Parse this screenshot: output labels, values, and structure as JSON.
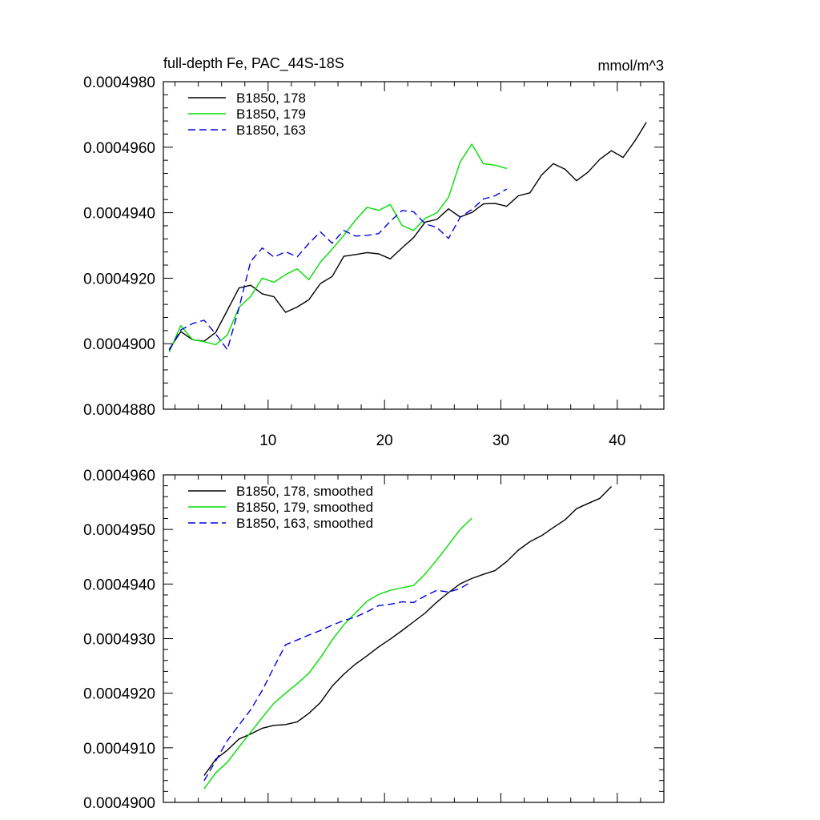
{
  "chart_data": [
    {
      "type": "line",
      "title": "full-depth Fe, PAC_44S-18S",
      "units": "mmol/m^3",
      "xlim": [
        1,
        44
      ],
      "ylim": [
        0.000488,
        0.000498
      ],
      "xticks": [
        10,
        20,
        30,
        40
      ],
      "xtick_labels": [
        "10",
        "20",
        "30",
        "40"
      ],
      "yticks": [
        0.000488,
        0.00049,
        0.000492,
        0.000494,
        0.000496,
        0.000498
      ],
      "ytick_labels": [
        "0.0004880",
        "0.0004900",
        "0.0004920",
        "0.0004940",
        "0.0004960",
        "0.0004980"
      ],
      "legend_position": "top-left",
      "series": [
        {
          "name": "B1850, 178",
          "color": "#000000",
          "dash": "solid",
          "x": [
            1.5,
            2.5,
            3.5,
            4.5,
            5.5,
            6.5,
            7.5,
            8.5,
            9.5,
            10.5,
            11.5,
            12.5,
            13.5,
            14.5,
            15.5,
            16.5,
            17.5,
            18.5,
            19.5,
            20.5,
            21.5,
            22.5,
            23.5,
            24.5,
            25.5,
            26.5,
            27.5,
            28.5,
            29.5,
            30.5,
            31.5,
            32.5,
            33.5,
            34.5,
            35.5,
            36.5,
            37.5,
            38.5,
            39.5,
            40.5,
            41.5,
            42.5
          ],
          "y": [
            0.000489826,
            0.000490368,
            0.000490123,
            0.000490074,
            0.000490344,
            0.000491019,
            0.000491702,
            0.000491786,
            0.000491523,
            0.000491433,
            0.000490958,
            0.000491121,
            0.000491343,
            0.000491839,
            0.000492051,
            0.000492667,
            0.000492722,
            0.000492783,
            0.000492743,
            0.00049259,
            0.000492923,
            0.000493239,
            0.000493713,
            0.000493794,
            0.000494118,
            0.000493867,
            0.000494004,
            0.00049427,
            0.000494282,
            0.000494195,
            0.000494516,
            0.000494607,
            0.000495152,
            0.000495496,
            0.000495329,
            0.000494976,
            0.000495242,
            0.000495634,
            0.000495893,
            0.000495686,
            0.000496187,
            0.00049676
          ]
        },
        {
          "name": "B1850, 179",
          "color": "#00e000",
          "dash": "solid",
          "x": [
            1.5,
            2.5,
            3.5,
            4.5,
            5.5,
            6.5,
            7.5,
            8.5,
            9.5,
            10.5,
            11.5,
            12.5,
            13.5,
            14.5,
            15.5,
            16.5,
            17.5,
            18.5,
            19.5,
            20.5,
            21.5,
            22.5,
            23.5,
            24.5,
            25.5,
            26.5,
            27.5,
            28.5,
            29.5,
            30.5
          ],
          "y": [
            0.000489743,
            0.000490549,
            0.000490124,
            0.000490058,
            0.000489968,
            0.000490267,
            0.000491111,
            0.000491442,
            0.000492003,
            0.000491875,
            0.00049211,
            0.000492285,
            0.000491953,
            0.000492488,
            0.000492888,
            0.000493307,
            0.000493768,
            0.000494165,
            0.000494071,
            0.00049425,
            0.000493613,
            0.000493455,
            0.000493828,
            0.000493994,
            0.000494464,
            0.000495548,
            0.000496092,
            0.000495493,
            0.00049545,
            0.00049535
          ]
        },
        {
          "name": "B1850, 163",
          "color": "#0000e0",
          "dash": "dashed",
          "x": [
            1.5,
            2.5,
            3.5,
            4.5,
            5.5,
            6.5,
            7.5,
            8.5,
            9.5,
            10.5,
            11.5,
            12.5,
            13.5,
            14.5,
            15.5,
            16.5,
            17.5,
            18.5,
            19.5,
            20.5,
            21.5,
            22.5,
            23.5,
            24.5,
            25.5,
            26.5,
            27.5,
            28.5,
            29.5,
            30.5
          ],
          "y": [
            0.000489802,
            0.000490418,
            0.000490613,
            0.000490717,
            0.000490299,
            0.000489816,
            0.000491096,
            0.000492511,
            0.000492922,
            0.000492645,
            0.000492808,
            0.000492652,
            0.000493062,
            0.000493414,
            0.000493069,
            0.000493458,
            0.000493285,
            0.000493309,
            0.000493363,
            0.000493735,
            0.000494065,
            0.00049403,
            0.000493657,
            0.000493551,
            0.000493213,
            0.000493857,
            0.000494098,
            0.000494419,
            0.000494516,
            0.000494722
          ]
        }
      ]
    },
    {
      "type": "line",
      "title": "",
      "xlim": [
        1,
        44
      ],
      "ylim": [
        0.00049,
        0.000496
      ],
      "xticks": [
        10,
        20,
        30,
        40
      ],
      "xtick_labels": [],
      "yticks": [
        0.00049,
        0.000491,
        0.000492,
        0.000493,
        0.000494,
        0.000495,
        0.000496
      ],
      "ytick_labels": [
        "0.0004900",
        "0.0004910",
        "0.0004920",
        "0.0004930",
        "0.0004940",
        "0.0004950",
        "0.0004960"
      ],
      "legend_position": "top-left",
      "series": [
        {
          "name": "B1850, 178, smoothed",
          "color": "#000000",
          "dash": "solid",
          "x": [
            4.5,
            5.5,
            6.5,
            7.5,
            8.5,
            9.5,
            10.5,
            11.5,
            12.5,
            13.5,
            14.5,
            15.5,
            16.5,
            17.5,
            18.5,
            19.5,
            20.5,
            21.5,
            22.5,
            23.5,
            24.5,
            25.5,
            26.5,
            27.5,
            28.5,
            29.5,
            30.5,
            31.5,
            32.5,
            33.5,
            34.5,
            35.5,
            36.5,
            37.5,
            38.5,
            39.5
          ],
          "y": [
            0.000490491,
            0.000490791,
            0.000490956,
            0.000491162,
            0.000491253,
            0.000491359,
            0.000491411,
            0.000491426,
            0.000491476,
            0.000491631,
            0.000491831,
            0.000492128,
            0.000492347,
            0.000492532,
            0.000492686,
            0.000492849,
            0.000492991,
            0.000493146,
            0.000493308,
            0.000493469,
            0.000493671,
            0.000493844,
            0.000494004,
            0.000494102,
            0.000494178,
            0.000494245,
            0.000494413,
            0.000494621,
            0.000494776,
            0.000494887,
            0.000495034,
            0.000495176,
            0.000495381,
            0.000495477,
            0.00049557,
            0.000495787
          ]
        },
        {
          "name": "B1850, 179, smoothed",
          "color": "#00e000",
          "dash": "solid",
          "x": [
            4.5,
            5.5,
            6.5,
            7.5,
            8.5,
            9.5,
            10.5,
            11.5,
            12.5,
            13.5,
            14.5,
            15.5,
            16.5,
            17.5,
            18.5,
            19.5,
            20.5,
            21.5,
            22.5,
            23.5,
            24.5,
            25.5,
            26.5,
            27.5
          ],
          "y": [
            0.000490251,
            0.00049054,
            0.000490737,
            0.000491014,
            0.000491285,
            0.000491554,
            0.000491817,
            0.000492,
            0.000492175,
            0.000492366,
            0.000492653,
            0.000492975,
            0.000493252,
            0.000493469,
            0.000493687,
            0.000493808,
            0.000493885,
            0.000493931,
            0.000493974,
            0.000494184,
            0.000494444,
            0.000494719,
            0.000494998,
            0.000495204
          ]
        },
        {
          "name": "B1850, 163, smoothed",
          "color": "#0000e0",
          "dash": "dashed",
          "x": [
            4.5,
            5.5,
            6.5,
            7.5,
            8.5,
            9.5,
            10.5,
            11.5,
            12.5,
            13.5,
            14.5,
            15.5,
            16.5,
            17.5,
            18.5,
            19.5,
            20.5,
            21.5,
            22.5,
            23.5,
            24.5,
            25.5,
            26.5,
            27.5
          ],
          "y": [
            0.000490397,
            0.000490761,
            0.000491133,
            0.000491419,
            0.000491696,
            0.000492053,
            0.000492477,
            0.000492887,
            0.000492975,
            0.000493066,
            0.00049315,
            0.000493247,
            0.000493331,
            0.000493395,
            0.000493491,
            0.000493605,
            0.000493629,
            0.000493673,
            0.000493662,
            0.000493784,
            0.000493886,
            0.000493853,
            0.000493919,
            0.000494048
          ]
        }
      ]
    }
  ]
}
